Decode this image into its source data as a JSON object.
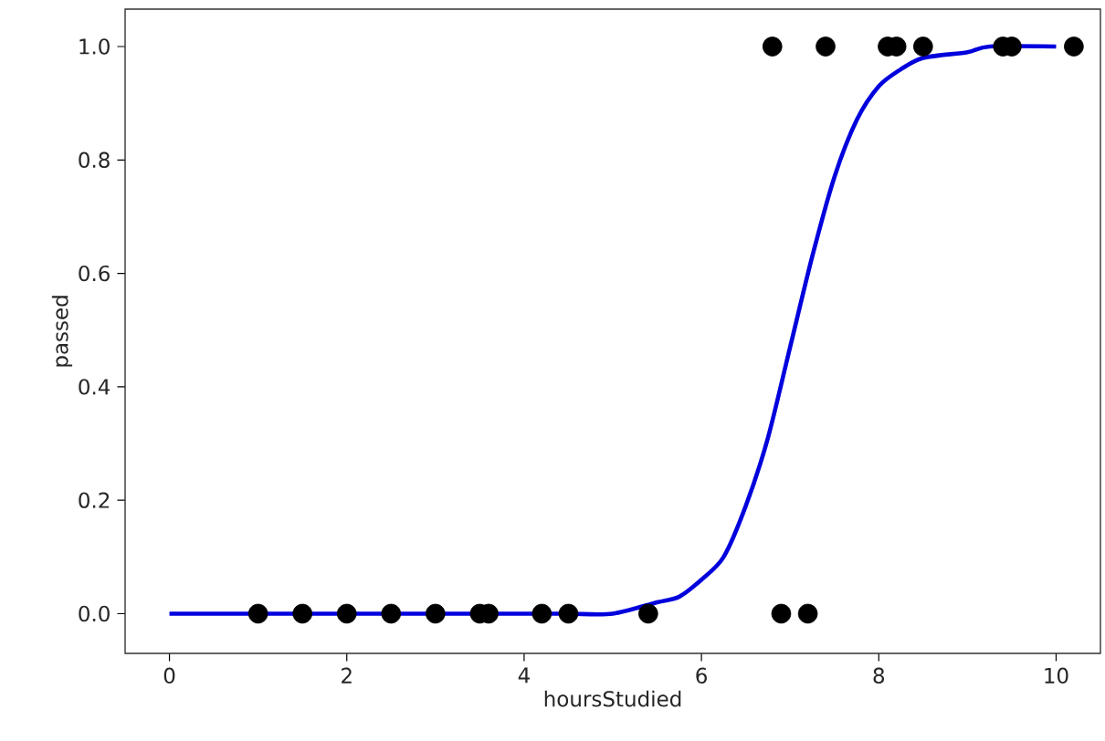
{
  "chart_data": {
    "type": "scatter",
    "xlabel": "hoursStudied",
    "ylabel": "passed",
    "xlim": [
      -0.5,
      10.5
    ],
    "ylim": [
      -0.07,
      1.066
    ],
    "xticks": [
      0,
      2,
      4,
      6,
      8,
      10
    ],
    "yticks": [
      {
        "value": 0,
        "label": "0.0"
      },
      {
        "value": 0.2,
        "label": "0.2"
      },
      {
        "value": 0.4,
        "label": "0.4"
      },
      {
        "value": 0.6,
        "label": "0.6"
      },
      {
        "value": 0.8,
        "label": "0.8"
      },
      {
        "value": 1,
        "label": "1.0"
      }
    ],
    "grid": false,
    "series": [
      {
        "color": "#000000",
        "marker": "circle",
        "x": [
          1.0,
          1.5,
          2.0,
          2.5,
          3.0,
          3.5,
          3.6,
          4.2,
          4.5,
          5.4,
          6.9,
          7.2,
          6.8,
          7.4,
          8.1,
          8.2,
          8.5,
          9.4,
          9.5,
          10.2
        ],
        "values": [
          0,
          0,
          0,
          0,
          0,
          0,
          0,
          0,
          0,
          0,
          0,
          0,
          1,
          1,
          1,
          1,
          1,
          1,
          1,
          1
        ]
      },
      {
        "type": "line",
        "color": "#0000dd",
        "marker": "none",
        "line_style": "solid",
        "x": [
          0,
          1,
          2,
          3,
          4,
          4.5,
          5,
          5.5,
          5.75,
          6,
          6.25,
          6.5,
          6.75,
          7,
          7.25,
          7.5,
          7.75,
          8,
          8.25,
          8.5,
          9,
          9.25,
          10
        ],
        "values": [
          0,
          0,
          0,
          0,
          0,
          0,
          0,
          0.02,
          0.03,
          0.06,
          0.1,
          0.19,
          0.31,
          0.47,
          0.63,
          0.77,
          0.87,
          0.93,
          0.96,
          0.98,
          0.99,
          1,
          1
        ]
      }
    ]
  }
}
